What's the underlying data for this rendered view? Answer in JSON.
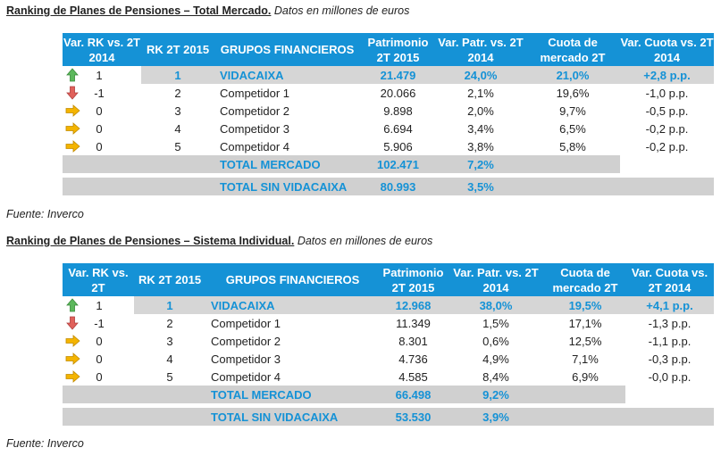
{
  "t1": {
    "title_bold": "Ranking de Planes de Pensiones – Total Mercado.",
    "title_italic": "Datos en millones de euros",
    "headers": [
      "Var. RK vs. 2T 2014",
      "RK 2T 2015",
      "GRUPOS FINANCIEROS",
      "Patrimonio 2T 2015",
      "Var. Patr. vs. 2T 2014",
      "Cuota de mercado 2T",
      "Var. Cuota vs. 2T 2014"
    ],
    "rows": [
      {
        "arrow": "up-arrow-icon",
        "var_rk": "1",
        "rk": "1",
        "name": "VIDACAIXA",
        "patrimonio": "21.479",
        "var_patr": "24,0%",
        "cuota": "21,0%",
        "var_cuota": "+2,8 p.p."
      },
      {
        "arrow": "down-arrow-icon",
        "var_rk": "-1",
        "rk": "2",
        "name": "Competidor 1",
        "patrimonio": "20.066",
        "var_patr": "2,1%",
        "cuota": "19,6%",
        "var_cuota": "-1,0 p.p."
      },
      {
        "arrow": "right-arrow-icon",
        "var_rk": "0",
        "rk": "3",
        "name": "Competidor 2",
        "patrimonio": "9.898",
        "var_patr": "2,0%",
        "cuota": "9,7%",
        "var_cuota": "-0,5 p.p."
      },
      {
        "arrow": "right-arrow-icon",
        "var_rk": "0",
        "rk": "4",
        "name": "Competidor 3",
        "patrimonio": "6.694",
        "var_patr": "3,4%",
        "cuota": "6,5%",
        "var_cuota": "-0,2 p.p."
      },
      {
        "arrow": "right-arrow-icon",
        "var_rk": "0",
        "rk": "5",
        "name": "Competidor 4",
        "patrimonio": "5.906",
        "var_patr": "3,8%",
        "cuota": "5,8%",
        "var_cuota": "-0,2 p.p."
      }
    ],
    "total": {
      "label": "TOTAL MERCADO",
      "patrimonio": "102.471",
      "var_patr": "7,2%"
    },
    "total_sin": {
      "label": "TOTAL SIN VIDACAIXA",
      "patrimonio": "80.993",
      "var_patr": "3,5%"
    },
    "source": "Fuente: Inverco"
  },
  "t2": {
    "title_bold": "Ranking de Planes de Pensiones – Sistema Individual.",
    "title_italic": "Datos en millones de euros",
    "headers": [
      "Var. RK vs. 2T",
      "RK 2T 2015",
      "GRUPOS FINANCIEROS",
      "Patrimonio 2T 2015",
      "Var. Patr. vs. 2T 2014",
      "Cuota de mercado 2T",
      "Var. Cuota vs. 2T 2014"
    ],
    "rows": [
      {
        "arrow": "up-arrow-icon",
        "var_rk": "1",
        "rk": "1",
        "name": "VIDACAIXA",
        "patrimonio": "12.968",
        "var_patr": "38,0%",
        "cuota": "19,5%",
        "var_cuota": "+4,1 p.p."
      },
      {
        "arrow": "down-arrow-icon",
        "var_rk": "-1",
        "rk": "2",
        "name": "Competidor 1",
        "patrimonio": "11.349",
        "var_patr": "1,5%",
        "cuota": "17,1%",
        "var_cuota": "-1,3 p.p."
      },
      {
        "arrow": "right-arrow-icon",
        "var_rk": "0",
        "rk": "3",
        "name": "Competidor 2",
        "patrimonio": "8.301",
        "var_patr": "0,6%",
        "cuota": "12,5%",
        "var_cuota": "-1,1 p.p."
      },
      {
        "arrow": "right-arrow-icon",
        "var_rk": "0",
        "rk": "4",
        "name": "Competidor 3",
        "patrimonio": "4.736",
        "var_patr": "4,9%",
        "cuota": "7,1%",
        "var_cuota": "-0,3 p.p."
      },
      {
        "arrow": "right-arrow-icon",
        "var_rk": "0",
        "rk": "5",
        "name": "Competidor 4",
        "patrimonio": "4.585",
        "var_patr": "8,4%",
        "cuota": "6,9%",
        "var_cuota": "-0,0 p.p."
      }
    ],
    "total": {
      "label": "TOTAL MERCADO",
      "patrimonio": "66.498",
      "var_patr": "9,2%"
    },
    "total_sin": {
      "label": "TOTAL SIN VIDACAIXA",
      "patrimonio": "53.530",
      "var_patr": "3,9%"
    },
    "source": "Fuente: Inverco"
  },
  "colors": {
    "header_blue": "#1592d6",
    "highlight_gray": "#d6d6d6",
    "arrow_up": "#5cb85c",
    "arrow_down": "#e0605a",
    "arrow_neutral": "#f4b400"
  }
}
